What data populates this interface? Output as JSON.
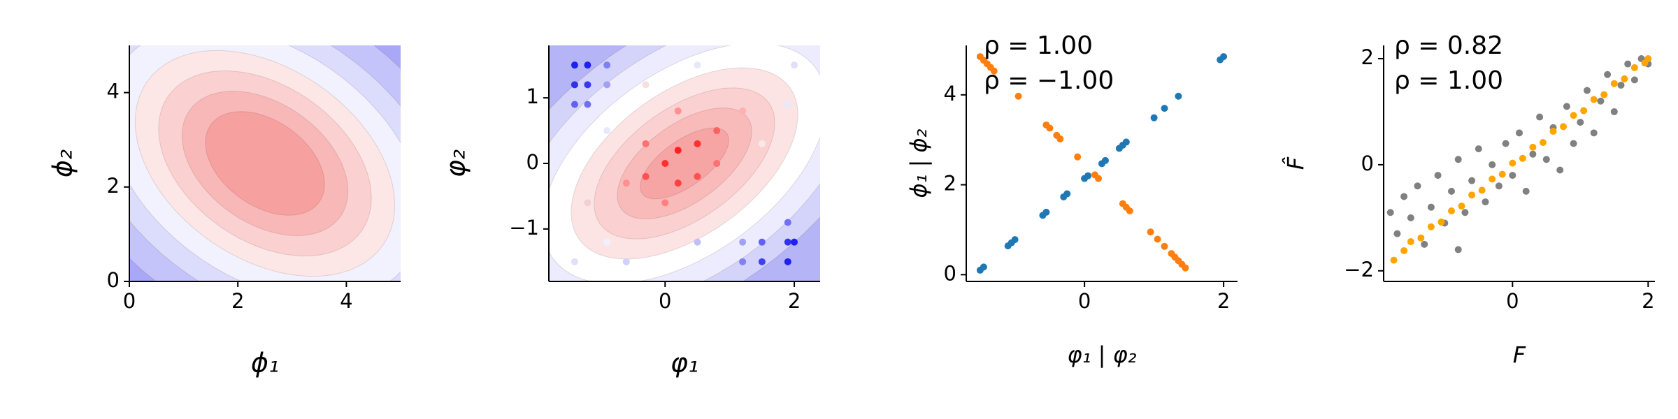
{
  "chart_data": [
    {
      "type": "contour",
      "xlabel": "ϕ₁",
      "ylabel": "ϕ₂",
      "xlim": [
        0,
        5
      ],
      "ylim": [
        0,
        5
      ],
      "xticks": [
        0,
        2,
        4
      ],
      "yticks": [
        0,
        2,
        4
      ],
      "center": [
        2.5,
        2.5
      ],
      "angle": -45,
      "background": "#a8a8f6",
      "contours": [
        {
          "a": 4.8,
          "b": 3.2,
          "color": "#c4c4fa"
        },
        {
          "a": 4.0,
          "b": 2.7,
          "color": "#dcdcfc"
        },
        {
          "a": 3.4,
          "b": 2.3,
          "color": "#f2f2fe"
        },
        {
          "a": 2.8,
          "b": 1.9,
          "color": "#fde6e6"
        },
        {
          "a": 2.3,
          "b": 1.55,
          "color": "#fbd0d0"
        },
        {
          "a": 1.8,
          "b": 1.2,
          "color": "#f9b8b8"
        },
        {
          "a": 1.3,
          "b": 0.85,
          "color": "#f6a0a0"
        }
      ]
    },
    {
      "type": "contour",
      "xlabel": "φ₁",
      "ylabel": "φ₂",
      "xlim": [
        -1.8,
        2.4
      ],
      "ylim": [
        -1.8,
        1.8
      ],
      "xticks": [
        0,
        2
      ],
      "yticks": [
        {
          "value": -1,
          "label": "−1"
        },
        0,
        1
      ],
      "center": [
        0.3,
        0
      ],
      "angle": 35,
      "background": "#b4b4f6",
      "contours": [
        {
          "a": 3.6,
          "b": 2.0,
          "color": "#d4d4fa"
        },
        {
          "a": 3.0,
          "b": 1.7,
          "color": "#ececfe"
        },
        {
          "a": 2.5,
          "b": 1.4,
          "color": "#ffffff"
        },
        {
          "a": 2.0,
          "b": 1.1,
          "color": "#fde4e4"
        },
        {
          "a": 1.6,
          "b": 0.85,
          "color": "#fbd0d0"
        },
        {
          "a": 1.2,
          "b": 0.6,
          "color": "#f9baba"
        },
        {
          "a": 0.8,
          "b": 0.35,
          "color": "#f6a4a4"
        }
      ],
      "series": [
        {
          "x": [
            -1.4,
            -1.2,
            -1.4,
            -1.2,
            -1.4,
            -1.2,
            -0.9,
            -0.9,
            1.9,
            2.0,
            1.9,
            1.5,
            1.5,
            1.2,
            1.9,
            1.2,
            0,
            0.2,
            -0.3,
            0.5,
            0.2,
            -0.3,
            0.5,
            0.8,
            0,
            -0.6,
            0.8,
            0.2,
            -0.9,
            -1.2,
            -0.3,
            1.2,
            1.5,
            -1.4,
            -0.6,
            0.5,
            2.0,
            -0.9,
            0.5,
            1.9
          ],
          "values": [
            1.5,
            1.5,
            1.2,
            1.2,
            0.9,
            0.9,
            1.5,
            1.2,
            -1.5,
            -1.2,
            -1.2,
            -1.5,
            -1.2,
            -1.5,
            -0.9,
            -1.2,
            0,
            0.2,
            -0.2,
            0.3,
            -0.3,
            0.3,
            -0.2,
            0.5,
            -0.6,
            -0.3,
            0,
            0.8,
            0.5,
            -0.6,
            1.2,
            0.8,
            0.3,
            -1.5,
            -1.5,
            1.5,
            1.5,
            -1.2,
            -1.2,
            0.9
          ],
          "colors": [
            "#2020f0",
            "#2020f0",
            "#3030f0",
            "#3838f0",
            "#6060f4",
            "#7070f4",
            "#8080f6",
            "#a0a0f8",
            "#2020f0",
            "#2020f0",
            "#3030f0",
            "#4040f0",
            "#6060f4",
            "#8080f6",
            "#7070f4",
            "#a0a0f8",
            "#ff3030",
            "#ff2020",
            "#ff5050",
            "#ff3030",
            "#ff4040",
            "#ff7070",
            "#ff5050",
            "#ff6060",
            "#ff8080",
            "#ff9090",
            "#ff7070",
            "#ff9090",
            "#e8e8fc",
            "#f0d0d0",
            "#f8e0e0",
            "#ffb0b0",
            "#f8e8e8",
            "#e0e0fc",
            "#d0d0fa",
            "#e8e8fc",
            "#e0e0fc",
            "#f0f0fe",
            "#c0c0f8",
            "#e8e8fc"
          ]
        }
      ]
    },
    {
      "type": "scatter",
      "xlabel": "φ₁ | φ₂",
      "ylabel": "ϕ₁ | ϕ₂",
      "xlim": [
        -1.7,
        2.2
      ],
      "ylim": [
        -0.15,
        5.1
      ],
      "xticks": [
        0,
        2
      ],
      "yticks": [
        0,
        2,
        4
      ],
      "annotations": [
        {
          "text": "ρ = 1.00",
          "color": "#1f77b4"
        },
        {
          "text": "ρ = −1.00",
          "color": "#ff7f0e"
        }
      ],
      "series": [
        {
          "color": "#1f77b4",
          "x": [
            -1.5,
            -1.45,
            -1.1,
            -1.05,
            -1.0,
            -0.6,
            -0.55,
            -0.3,
            -0.25,
            0,
            0.05,
            0.25,
            0.3,
            0.5,
            0.55,
            0.6,
            1.0,
            1.15,
            1.35,
            1.95,
            2.0
          ],
          "values": [
            0.1,
            0.17,
            0.64,
            0.71,
            0.78,
            1.32,
            1.39,
            1.73,
            1.8,
            2.14,
            2.2,
            2.47,
            2.54,
            2.81,
            2.88,
            2.95,
            3.49,
            3.7,
            3.97,
            4.78,
            4.85
          ]
        },
        {
          "color": "#ff7f0e",
          "x": [
            -1.5,
            -1.45,
            -1.4,
            -1.35,
            -1.3,
            -0.95,
            -0.55,
            -0.5,
            -0.4,
            -0.35,
            -0.1,
            0.15,
            0.2,
            0.55,
            0.6,
            0.65,
            0.95,
            1.05,
            1.15,
            1.25,
            1.3,
            1.35,
            1.4,
            1.45
          ],
          "values": [
            4.85,
            4.77,
            4.69,
            4.61,
            4.53,
            3.97,
            3.33,
            3.26,
            3.1,
            3.02,
            2.62,
            2.22,
            2.14,
            1.58,
            1.5,
            1.42,
            0.95,
            0.79,
            0.63,
            0.47,
            0.39,
            0.31,
            0.23,
            0.15
          ]
        }
      ]
    },
    {
      "type": "scatter",
      "xlabel": "F",
      "ylabel": "F̂",
      "xlim": [
        -1.9,
        2.1
      ],
      "ylim": [
        -2.2,
        2.25
      ],
      "xticks": [
        0,
        2
      ],
      "yticks": [
        {
          "value": -2,
          "label": "−2"
        },
        0,
        2
      ],
      "annotations": [
        {
          "text": "ρ = 0.82",
          "color": "#808080"
        },
        {
          "text": "ρ = 1.00",
          "color": "#ffa500"
        }
      ],
      "series": [
        {
          "color": "#808080",
          "x": [
            -1.8,
            -1.7,
            -1.6,
            -1.5,
            -1.4,
            -1.3,
            -1.2,
            -1.1,
            -1.0,
            -0.9,
            -0.8,
            -0.7,
            -0.6,
            -0.5,
            -0.4,
            -0.3,
            -0.2,
            -0.1,
            0,
            0.1,
            0.2,
            0.3,
            0.4,
            0.5,
            0.6,
            0.7,
            0.8,
            0.9,
            1.0,
            1.1,
            1.2,
            1.3,
            1.4,
            1.5,
            1.6,
            1.7,
            1.8,
            1.9,
            2.0,
            -0.8
          ],
          "values": [
            -0.9,
            -1.3,
            -0.6,
            -1.0,
            -0.4,
            -1.5,
            -0.8,
            -0.2,
            -1.1,
            -0.5,
            0.1,
            -0.9,
            -0.3,
            0.3,
            -0.7,
            0.0,
            -0.4,
            0.4,
            -0.2,
            0.6,
            -0.5,
            0.2,
            0.9,
            0.1,
            0.7,
            -0.1,
            1.1,
            0.4,
            0.8,
            1.4,
            0.6,
            1.2,
            1.7,
            1.0,
            1.5,
            1.9,
            1.6,
            2.0,
            1.9,
            -1.6
          ]
        },
        {
          "color": "#ffa500",
          "x": [
            -1.75,
            -1.6,
            -1.5,
            -1.35,
            -1.2,
            -1.05,
            -0.9,
            -0.75,
            -0.6,
            -0.45,
            -0.3,
            -0.15,
            0,
            0.15,
            0.3,
            0.45,
            0.6,
            0.75,
            0.9,
            1.05,
            1.2,
            1.35,
            1.5,
            1.65,
            1.8,
            1.95,
            2.0
          ],
          "values": [
            -1.8,
            -1.62,
            -1.45,
            -1.38,
            -1.17,
            -1.08,
            -0.87,
            -0.78,
            -0.57,
            -0.48,
            -0.27,
            -0.18,
            0.03,
            0.12,
            0.33,
            0.42,
            0.63,
            0.72,
            0.93,
            1.02,
            1.23,
            1.32,
            1.53,
            1.62,
            1.83,
            1.92,
            2.0
          ]
        }
      ]
    }
  ]
}
